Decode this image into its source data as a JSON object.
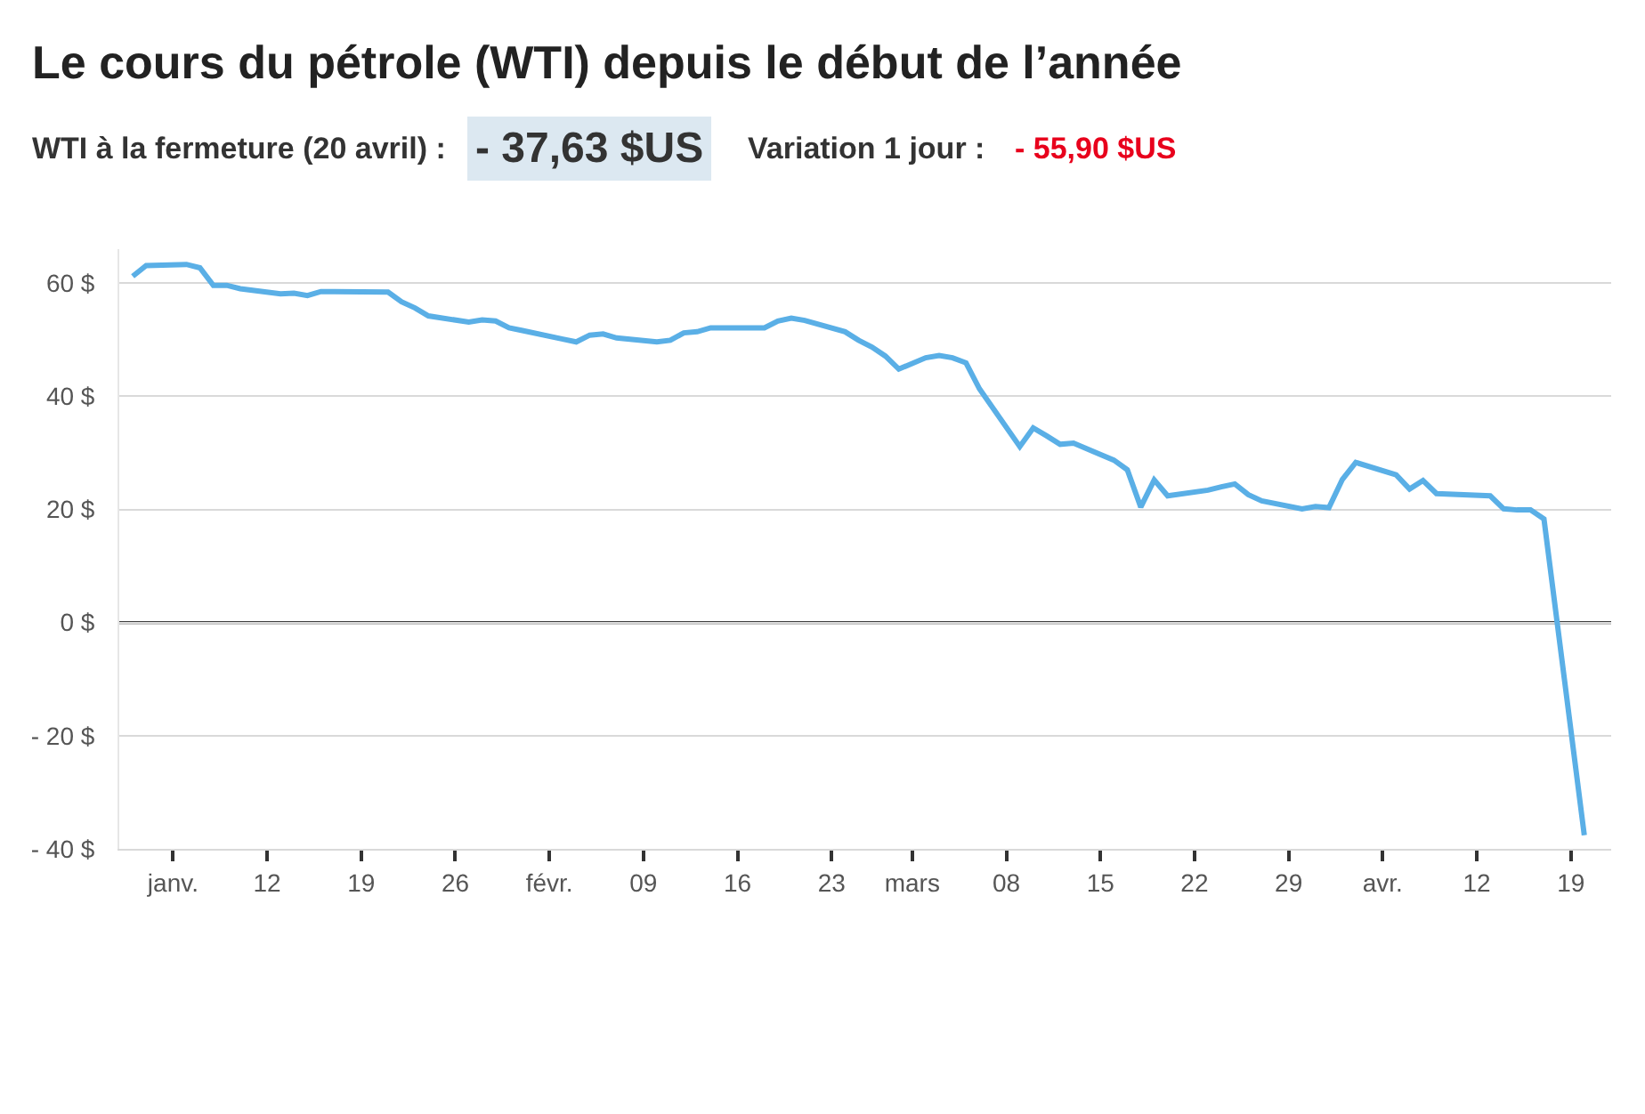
{
  "chart_data": {
    "type": "line",
    "title": "Le cours du pétrole (WTI) depuis le début de l’année",
    "subtitle": "WTI à la fermeture (20 avril) :",
    "annotations": [
      "- 37,63 $US",
      "Variation 1 jour :",
      "- 55,90 $US"
    ],
    "x": [
      "--01-02",
      "--01-03",
      "--01-06",
      "--01-07",
      "--01-08",
      "--01-09",
      "--01-10",
      "--01-13",
      "--01-14",
      "--01-15",
      "--01-16",
      "--01-17",
      "--01-21",
      "--01-22",
      "--01-23",
      "--01-24",
      "--01-27",
      "--01-28",
      "--01-29",
      "--01-30",
      "--01-31",
      "--02-03",
      "--02-04",
      "--02-05",
      "--02-06",
      "--02-07",
      "--02-10",
      "--02-11",
      "--02-12",
      "--02-13",
      "--02-14",
      "--02-18",
      "--02-19",
      "--02-20",
      "--02-21",
      "--02-24",
      "--02-25",
      "--02-26",
      "--02-27",
      "--02-28",
      "--03-02",
      "--03-03",
      "--03-04",
      "--03-05",
      "--03-06",
      "--03-09",
      "--03-10",
      "--03-11",
      "--03-12",
      "--03-13",
      "--03-16",
      "--03-17",
      "--03-18",
      "--03-19",
      "--03-20",
      "--03-23",
      "--03-24",
      "--03-25",
      "--03-26",
      "--03-27",
      "--03-30",
      "--03-31",
      "--04-01",
      "--04-02",
      "--04-03",
      "--04-06",
      "--04-07",
      "--04-08",
      "--04-09",
      "--04-13",
      "--04-14",
      "--04-15",
      "--04-16",
      "--04-17",
      "--04-20"
    ],
    "series": [
      {
        "color": "#5aafe6",
        "values": [
          61.2,
          63.1,
          63.3,
          62.7,
          59.6,
          59.6,
          59.0,
          58.1,
          58.2,
          57.8,
          58.5,
          58.5,
          58.4,
          56.7,
          55.6,
          54.2,
          53.1,
          53.5,
          53.3,
          52.1,
          51.6,
          50.1,
          49.6,
          50.8,
          51.0,
          50.3,
          49.6,
          49.9,
          51.2,
          51.4,
          52.1,
          52.1,
          53.3,
          53.8,
          53.4,
          51.4,
          49.9,
          48.7,
          47.1,
          44.8,
          46.8,
          47.2,
          46.8,
          45.9,
          41.3,
          31.1,
          34.4,
          33.0,
          31.5,
          31.7,
          28.7,
          27.0,
          20.4,
          25.2,
          22.4,
          23.4,
          24.0,
          24.5,
          22.6,
          21.5,
          20.1,
          20.5,
          20.3,
          25.3,
          28.3,
          26.1,
          23.6,
          25.1,
          22.8,
          22.4,
          20.1,
          19.9,
          19.9,
          18.3,
          -37.6
        ]
      }
    ],
    "xlim": [
      "--01-01",
      "--04-22"
    ],
    "xticks": [
      {
        "value": "--01-05",
        "label": "janv."
      },
      {
        "value": "--01-12",
        "label": "12"
      },
      {
        "value": "--01-19",
        "label": "19"
      },
      {
        "value": "--01-26",
        "label": "26"
      },
      {
        "value": "--02-02",
        "label": "févr."
      },
      {
        "value": "--02-09",
        "label": "09"
      },
      {
        "value": "--02-16",
        "label": "16"
      },
      {
        "value": "--02-23",
        "label": "23"
      },
      {
        "value": "--03-01",
        "label": "mars"
      },
      {
        "value": "--03-08",
        "label": "08"
      },
      {
        "value": "--03-15",
        "label": "15"
      },
      {
        "value": "--03-22",
        "label": "22"
      },
      {
        "value": "--03-29",
        "label": "29"
      },
      {
        "value": "--04-05",
        "label": "avr."
      },
      {
        "value": "--04-12",
        "label": "12"
      },
      {
        "value": "--04-19",
        "label": "19"
      }
    ],
    "ylim": [
      -40,
      66
    ],
    "yticks": [
      {
        "value": -40,
        "label": "- 40 $"
      },
      {
        "value": -20,
        "label": "- 20 $"
      },
      {
        "value": 0,
        "label": "0 $"
      },
      {
        "value": 20,
        "label": "20 $"
      },
      {
        "value": 40,
        "label": "40 $"
      },
      {
        "value": 60,
        "label": "60 $"
      }
    ],
    "ref_lines": [
      {
        "axis": "y",
        "value": 0,
        "color": "#000000"
      }
    ],
    "grid": "y",
    "marker": "none",
    "line_style": "solid"
  }
}
